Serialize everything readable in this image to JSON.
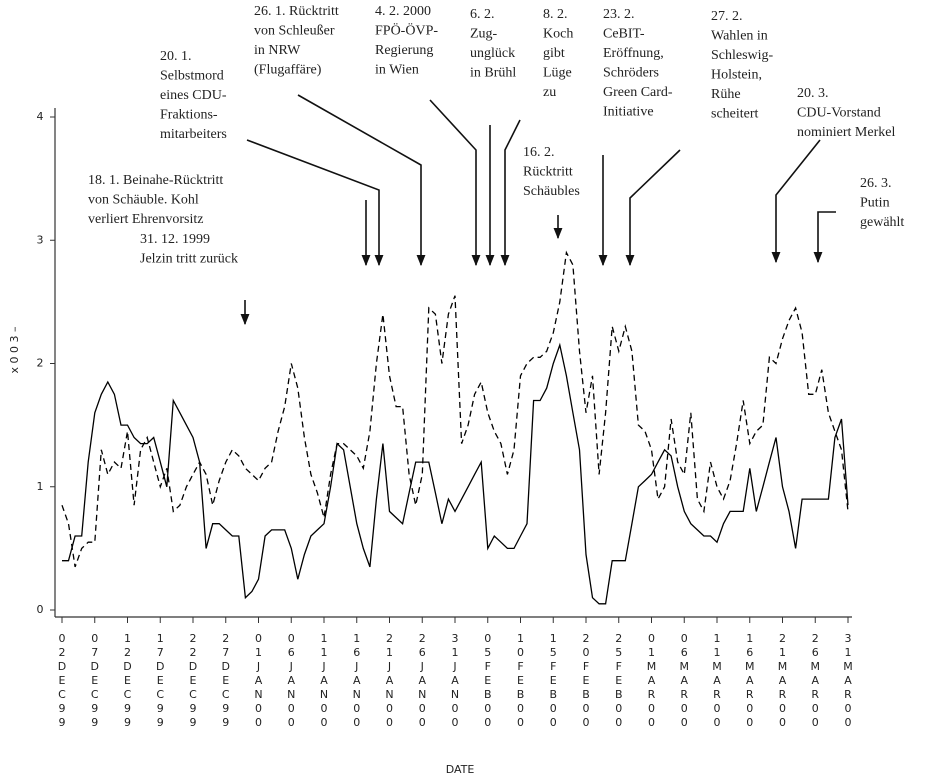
{
  "chart_data": {
    "type": "line",
    "y_label": "x 0 0 3 –",
    "x_label": "DATE",
    "categories": [
      "02DEC99",
      null,
      null,
      null,
      null,
      "07DEC99",
      null,
      null,
      null,
      null,
      "12DEC99",
      null,
      null,
      null,
      null,
      "17DEC99",
      null,
      null,
      null,
      null,
      "22DEC99",
      null,
      null,
      null,
      null,
      "27DEC99",
      null,
      null,
      null,
      null,
      "01JAN00",
      null,
      null,
      null,
      null,
      "06JAN00",
      null,
      null,
      null,
      null,
      "11JAN00",
      null,
      null,
      null,
      null,
      "16JAN00",
      null,
      null,
      null,
      null,
      "21JAN00",
      null,
      null,
      null,
      null,
      "26JAN00",
      null,
      null,
      null,
      null,
      "31JAN00",
      null,
      null,
      null,
      null,
      "05FEB00",
      null,
      null,
      null,
      null,
      "10FEB00",
      null,
      null,
      null,
      null,
      "15FEB00",
      null,
      null,
      null,
      null,
      "20FEB00",
      null,
      null,
      null,
      null,
      "25FEB00",
      null,
      null,
      null,
      null,
      "01MAR00",
      null,
      null,
      null,
      null,
      "06MAR00",
      null,
      null,
      null,
      null,
      "11MAR00",
      null,
      null,
      null,
      null,
      "16MAR00",
      null,
      null,
      null,
      null,
      "21MAR00",
      null,
      null,
      null,
      null,
      "26MAR00",
      null,
      null,
      null,
      null,
      "31MAR00"
    ],
    "series": [
      {
        "color": "#000000",
        "line_style": "solid",
        "values": [
          0.4,
          0.4,
          0.6,
          0.6,
          1.2,
          1.6,
          1.75,
          1.85,
          1.75,
          1.5,
          1.5,
          1.4,
          1.35,
          1.35,
          1.4,
          1.2,
          1.0,
          1.7,
          1.6,
          1.5,
          1.4,
          1.2,
          0.5,
          0.7,
          0.7,
          0.65,
          0.6,
          0.6,
          0.1,
          0.15,
          0.25,
          0.6,
          0.65,
          0.65,
          0.65,
          0.5,
          0.25,
          0.45,
          0.6,
          0.65,
          0.7,
          1.0,
          1.35,
          1.3,
          1.0,
          0.7,
          0.5,
          0.35,
          0.9,
          1.35,
          0.8,
          0.75,
          0.7,
          0.95,
          1.2,
          1.2,
          1.2,
          0.95,
          0.7,
          0.9,
          0.8,
          0.9,
          1.0,
          1.1,
          1.2,
          0.5,
          0.6,
          0.55,
          0.5,
          0.5,
          0.6,
          0.7,
          1.7,
          1.7,
          1.8,
          2.0,
          2.15,
          1.9,
          1.6,
          1.3,
          0.45,
          0.1,
          0.05,
          0.05,
          0.4,
          0.4,
          0.4,
          0.7,
          1.0,
          1.05,
          1.1,
          1.2,
          1.3,
          1.25,
          1.0,
          0.8,
          0.7,
          0.65,
          0.6,
          0.6,
          0.55,
          0.7,
          0.8,
          0.8,
          0.8,
          1.15,
          0.8,
          1.0,
          1.2,
          1.4,
          1.0,
          0.8,
          0.5,
          0.9,
          0.9,
          0.9,
          0.9,
          0.9,
          1.4,
          1.55,
          0.85
        ]
      },
      {
        "color": "#000000",
        "line_style": "dashed",
        "values": [
          0.85,
          0.7,
          0.35,
          0.5,
          0.55,
          0.55,
          1.3,
          1.1,
          1.2,
          1.15,
          1.45,
          0.85,
          1.3,
          1.4,
          1.2,
          1.0,
          1.15,
          0.8,
          0.85,
          1.0,
          1.1,
          1.2,
          1.1,
          0.85,
          1.05,
          1.2,
          1.3,
          1.25,
          1.15,
          1.1,
          1.05,
          1.15,
          1.2,
          1.45,
          1.65,
          2.0,
          1.8,
          1.4,
          1.1,
          0.95,
          0.75,
          1.1,
          1.35,
          1.35,
          1.3,
          1.25,
          1.15,
          1.45,
          2.0,
          2.4,
          1.9,
          1.65,
          1.65,
          1.1,
          0.85,
          1.1,
          2.45,
          2.4,
          2.0,
          2.4,
          2.55,
          1.35,
          1.5,
          1.75,
          1.85,
          1.6,
          1.45,
          1.35,
          1.1,
          1.3,
          1.9,
          2.0,
          2.05,
          2.05,
          2.1,
          2.25,
          2.5,
          2.9,
          2.8,
          2.1,
          1.6,
          1.9,
          1.1,
          1.6,
          2.3,
          2.1,
          2.3,
          2.1,
          1.5,
          1.45,
          1.3,
          0.9,
          1.0,
          1.55,
          1.2,
          1.1,
          1.6,
          0.9,
          0.8,
          1.2,
          1.0,
          0.9,
          1.05,
          1.35,
          1.7,
          1.35,
          1.45,
          1.5,
          2.05,
          2.0,
          2.2,
          2.35,
          2.45,
          2.25,
          1.75,
          1.75,
          1.95,
          1.6,
          1.45,
          1.3,
          0.8
        ]
      }
    ],
    "ylim": [
      0,
      4
    ],
    "yticks": [
      0,
      1,
      2,
      3,
      4
    ],
    "annotations": [
      {
        "lines": [
          "31. 12. 1999",
          "Jelzin tritt zurück"
        ]
      },
      {
        "lines": [
          "18. 1. Beinahe-Rücktritt",
          "von Schäuble. Kohl",
          "verliert Ehrenvorsitz"
        ]
      },
      {
        "lines": [
          "20. 1.",
          "Selbstmord",
          "eines CDU-",
          "Fraktions-",
          "mitarbeiters"
        ]
      },
      {
        "lines": [
          "26. 1. Rücktritt",
          "von Schleußer",
          "in NRW",
          "(Flugaffäre)"
        ]
      },
      {
        "lines": [
          "4. 2. 2000",
          "FPÖ-ÖVP-",
          "Regierung",
          "in Wien"
        ]
      },
      {
        "lines": [
          "6. 2.",
          "Zug-",
          "unglück",
          "in Brühl"
        ]
      },
      {
        "lines": [
          "8. 2.",
          "Koch",
          "gibt",
          "Lüge",
          "zu"
        ]
      },
      {
        "lines": [
          "16. 2.",
          "Rücktritt",
          "Schäubles"
        ]
      },
      {
        "lines": [
          "23. 2.",
          "CeBIT-",
          "Eröffnung,",
          "Schröders",
          "Green Card-",
          "Initiative"
        ]
      },
      {
        "lines": [
          "27. 2.",
          "Wahlen in",
          "Schleswig-",
          "Holstein,",
          "Rühe",
          "scheitert"
        ]
      },
      {
        "lines": [
          "20. 3.",
          "CDU-Vorstand",
          "nominiert Merkel"
        ]
      },
      {
        "lines": [
          "26. 3.",
          "Putin",
          "gewählt"
        ]
      }
    ]
  }
}
